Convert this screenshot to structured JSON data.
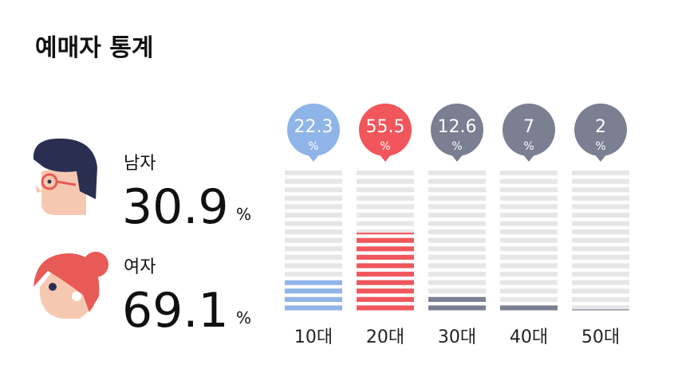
{
  "title": "예매자 통계",
  "unit": "%",
  "gender": [
    {
      "label": "남자",
      "value": 30.9
    },
    {
      "label": "여자",
      "value": 69.1
    }
  ],
  "chart_data": {
    "type": "bar",
    "categories": [
      "10대",
      "20대",
      "30대",
      "40대",
      "50대"
    ],
    "values": [
      22.3,
      55.5,
      12.6,
      7,
      2
    ],
    "colors": [
      "#8fb4e8",
      "#f0565b",
      "#7a7f91",
      "#7a7f91",
      "#7a7f91"
    ],
    "ylim": [
      0,
      100
    ]
  }
}
